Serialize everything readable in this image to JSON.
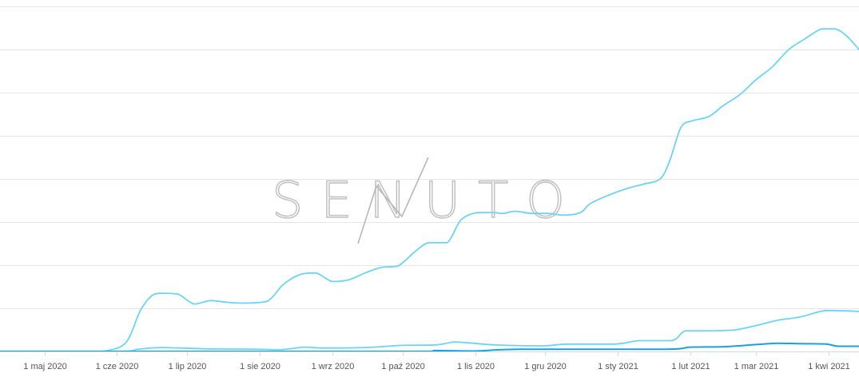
{
  "watermark": {
    "text": "SENUTO"
  },
  "colors": {
    "series_1": "#6bd3f8",
    "series_2": "#6bd3f8",
    "series_3": "#1aa0e0"
  },
  "chart_data": {
    "type": "line",
    "x_ticks": [
      "1 maj 2020",
      "1 cze 2020",
      "1 lip 2020",
      "1 sie 2020",
      "1 wrz 2020",
      "1 paź 2020",
      "1 lis 2020",
      "1 gru 2020",
      "1 sty 2021",
      "1 lut 2021",
      "1 mar 2021",
      "1 kwi 2021"
    ],
    "x_range": [
      "2020-04-12",
      "2021-04-14"
    ],
    "y_range": [
      0,
      8
    ],
    "y_gridlines": [
      0,
      1,
      2,
      3,
      4,
      5,
      6,
      7,
      8
    ],
    "y_tick_labels_visible": false,
    "grid": true,
    "legend": "none",
    "series": [
      {
        "points": [
          [
            "2020-04-12",
            0
          ],
          [
            "2020-05-20",
            0
          ],
          [
            "2020-05-28",
            0.02
          ],
          [
            "2020-06-05",
            0.22
          ],
          [
            "2020-06-11",
            0.95
          ],
          [
            "2020-06-16",
            1.3
          ],
          [
            "2020-06-20",
            1.35
          ],
          [
            "2020-06-27",
            1.33
          ],
          [
            "2020-07-04",
            1.1
          ],
          [
            "2020-07-11",
            1.18
          ],
          [
            "2020-07-18",
            1.14
          ],
          [
            "2020-07-25",
            1.12
          ],
          [
            "2020-08-04",
            1.16
          ],
          [
            "2020-08-11",
            1.55
          ],
          [
            "2020-08-18",
            1.78
          ],
          [
            "2020-08-25",
            1.82
          ],
          [
            "2020-09-01",
            1.62
          ],
          [
            "2020-09-08",
            1.66
          ],
          [
            "2020-09-15",
            1.82
          ],
          [
            "2020-09-22",
            1.95
          ],
          [
            "2020-09-29",
            1.98
          ],
          [
            "2020-10-06",
            2.3
          ],
          [
            "2020-10-12",
            2.52
          ],
          [
            "2020-10-20",
            2.52
          ],
          [
            "2020-10-26",
            3.05
          ],
          [
            "2020-11-02",
            3.22
          ],
          [
            "2020-11-09",
            3.22
          ],
          [
            "2020-11-13",
            3.2
          ],
          [
            "2020-11-18",
            3.25
          ],
          [
            "2020-11-25",
            3.2
          ],
          [
            "2020-12-02",
            3.2
          ],
          [
            "2020-12-09",
            3.16
          ],
          [
            "2020-12-16",
            3.22
          ],
          [
            "2020-12-20",
            3.42
          ],
          [
            "2020-12-27",
            3.6
          ],
          [
            "2021-01-05",
            3.78
          ],
          [
            "2021-01-12",
            3.88
          ],
          [
            "2021-01-19",
            4.0
          ],
          [
            "2021-01-23",
            4.4
          ],
          [
            "2021-01-28",
            5.2
          ],
          [
            "2021-02-02",
            5.35
          ],
          [
            "2021-02-09",
            5.45
          ],
          [
            "2021-02-15",
            5.7
          ],
          [
            "2021-02-22",
            5.95
          ],
          [
            "2021-03-01",
            6.3
          ],
          [
            "2021-03-08",
            6.6
          ],
          [
            "2021-03-15",
            7.0
          ],
          [
            "2021-03-22",
            7.25
          ],
          [
            "2021-03-29",
            7.48
          ],
          [
            "2021-04-04",
            7.48
          ],
          [
            "2021-04-09",
            7.3
          ],
          [
            "2021-04-14",
            7.0
          ]
        ]
      },
      {
        "points": [
          [
            "2020-04-12",
            0
          ],
          [
            "2020-06-01",
            0
          ],
          [
            "2020-06-10",
            0.05
          ],
          [
            "2020-06-20",
            0.09
          ],
          [
            "2020-07-10",
            0.06
          ],
          [
            "2020-07-31",
            0.05
          ],
          [
            "2020-08-10",
            0.04
          ],
          [
            "2020-08-20",
            0.1
          ],
          [
            "2020-08-28",
            0.08
          ],
          [
            "2020-09-15",
            0.09
          ],
          [
            "2020-10-01",
            0.14
          ],
          [
            "2020-10-15",
            0.15
          ],
          [
            "2020-10-23",
            0.22
          ],
          [
            "2020-10-29",
            0.2
          ],
          [
            "2020-11-10",
            0.15
          ],
          [
            "2020-11-30",
            0.13
          ],
          [
            "2020-12-10",
            0.17
          ],
          [
            "2020-12-31",
            0.17
          ],
          [
            "2021-01-10",
            0.25
          ],
          [
            "2021-01-24",
            0.25
          ],
          [
            "2021-01-30",
            0.48
          ],
          [
            "2021-02-10",
            0.48
          ],
          [
            "2021-02-20",
            0.5
          ],
          [
            "2021-03-01",
            0.6
          ],
          [
            "2021-03-10",
            0.72
          ],
          [
            "2021-03-20",
            0.8
          ],
          [
            "2021-03-31",
            0.95
          ],
          [
            "2021-04-14",
            0.93
          ]
        ]
      },
      {
        "points": [
          [
            "2020-04-12",
            0
          ],
          [
            "2020-10-01",
            0
          ],
          [
            "2020-10-15",
            0.02
          ],
          [
            "2020-11-01",
            0.01
          ],
          [
            "2020-11-20",
            0.05
          ],
          [
            "2021-01-20",
            0.05
          ],
          [
            "2021-02-01",
            0.1
          ],
          [
            "2021-02-15",
            0.11
          ],
          [
            "2021-03-01",
            0.16
          ],
          [
            "2021-03-10",
            0.19
          ],
          [
            "2021-03-20",
            0.18
          ],
          [
            "2021-03-31",
            0.17
          ],
          [
            "2021-04-05",
            0.12
          ],
          [
            "2021-04-14",
            0.12
          ]
        ]
      }
    ]
  }
}
